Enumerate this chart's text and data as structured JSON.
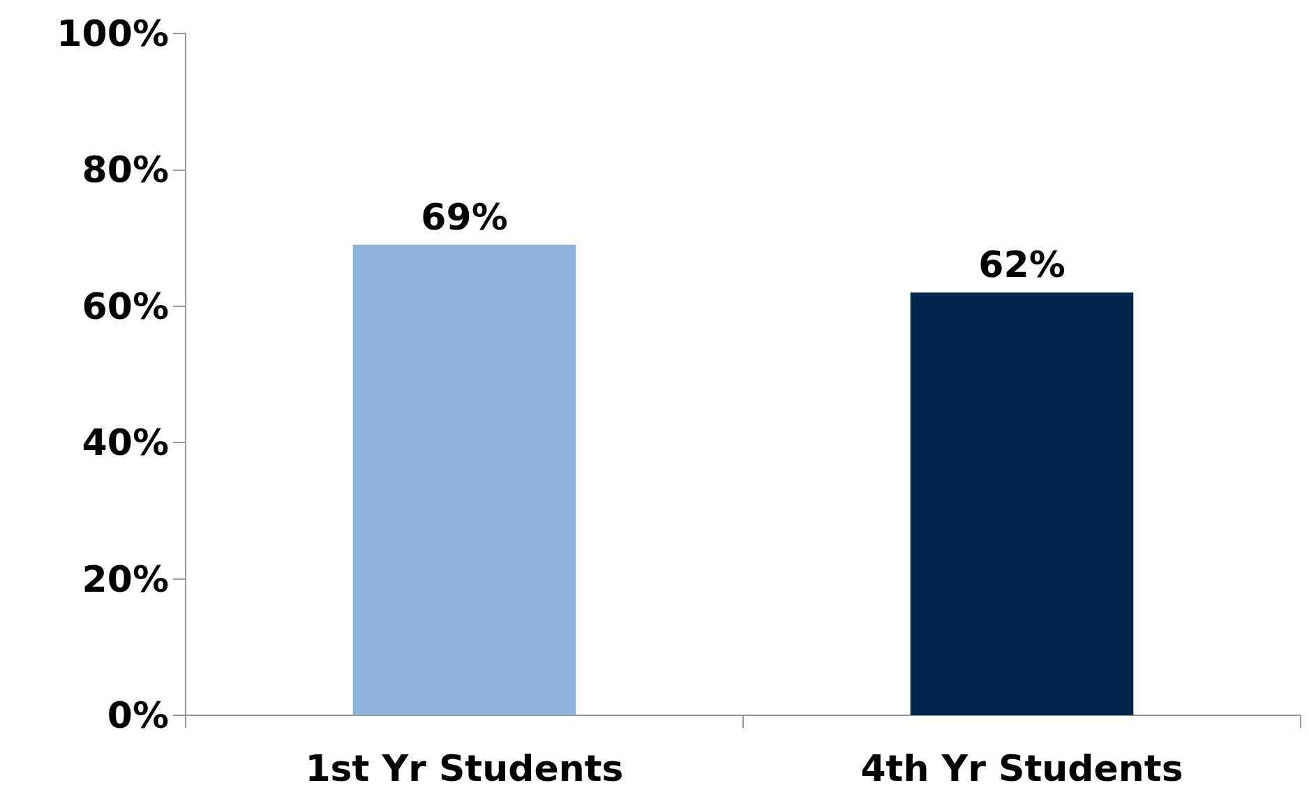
{
  "chart_data": {
    "type": "bar",
    "categories": [
      "1st Yr Students",
      "4th Yr Students"
    ],
    "values": [
      69,
      62
    ],
    "colors": [
      "#8fb4dc",
      "#02284d"
    ],
    "value_labels": [
      "69%",
      "62%"
    ],
    "ylim": [
      0,
      100
    ],
    "yticks": [
      {
        "value": 0,
        "label": "0%"
      },
      {
        "value": 20,
        "label": "20%"
      },
      {
        "value": 40,
        "label": "40%"
      },
      {
        "value": 60,
        "label": "60%"
      },
      {
        "value": 80,
        "label": "80%"
      },
      {
        "value": 100,
        "label": "100%"
      }
    ],
    "grid": false
  }
}
